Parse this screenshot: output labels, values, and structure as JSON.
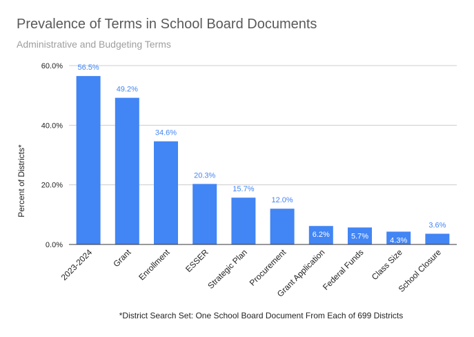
{
  "title": "Prevalence of Terms in School Board Documents",
  "subtitle": "Administrative and Budgeting Terms",
  "footnote": "*District Search Set: One School Board Document From Each of 699 Districts",
  "chart_data": {
    "type": "bar",
    "title": "Prevalence of Terms in School Board Documents",
    "subtitle": "Administrative and Budgeting Terms",
    "xlabel": "",
    "ylabel": "Percent of Districts*",
    "ylim": [
      0,
      60
    ],
    "yticks": [
      0,
      20,
      40,
      60
    ],
    "ytick_labels": [
      "0.0%",
      "20.0%",
      "40.0%",
      "60.0%"
    ],
    "grid": true,
    "legend": "none",
    "bar_color": "#4285f4",
    "label_color_outside": "#4285f4",
    "label_color_inside": "#ffffff",
    "categories": [
      "2023-2024",
      "Grant",
      "Enrollment",
      "ESSER",
      "Strategic Plan",
      "Procurement",
      "Grant Application",
      "Federal Funds",
      "Class Size",
      "School Closure"
    ],
    "values": [
      56.5,
      49.2,
      34.6,
      20.3,
      15.7,
      12.0,
      6.2,
      5.7,
      4.3,
      3.6
    ],
    "data_labels": [
      "56.5%",
      "49.2%",
      "34.6%",
      "20.3%",
      "15.7%",
      "12.0%",
      "6.2%",
      "5.7%",
      "4.3%",
      "3.6%"
    ],
    "label_inside": [
      false,
      false,
      false,
      false,
      false,
      false,
      true,
      true,
      true,
      false
    ]
  }
}
